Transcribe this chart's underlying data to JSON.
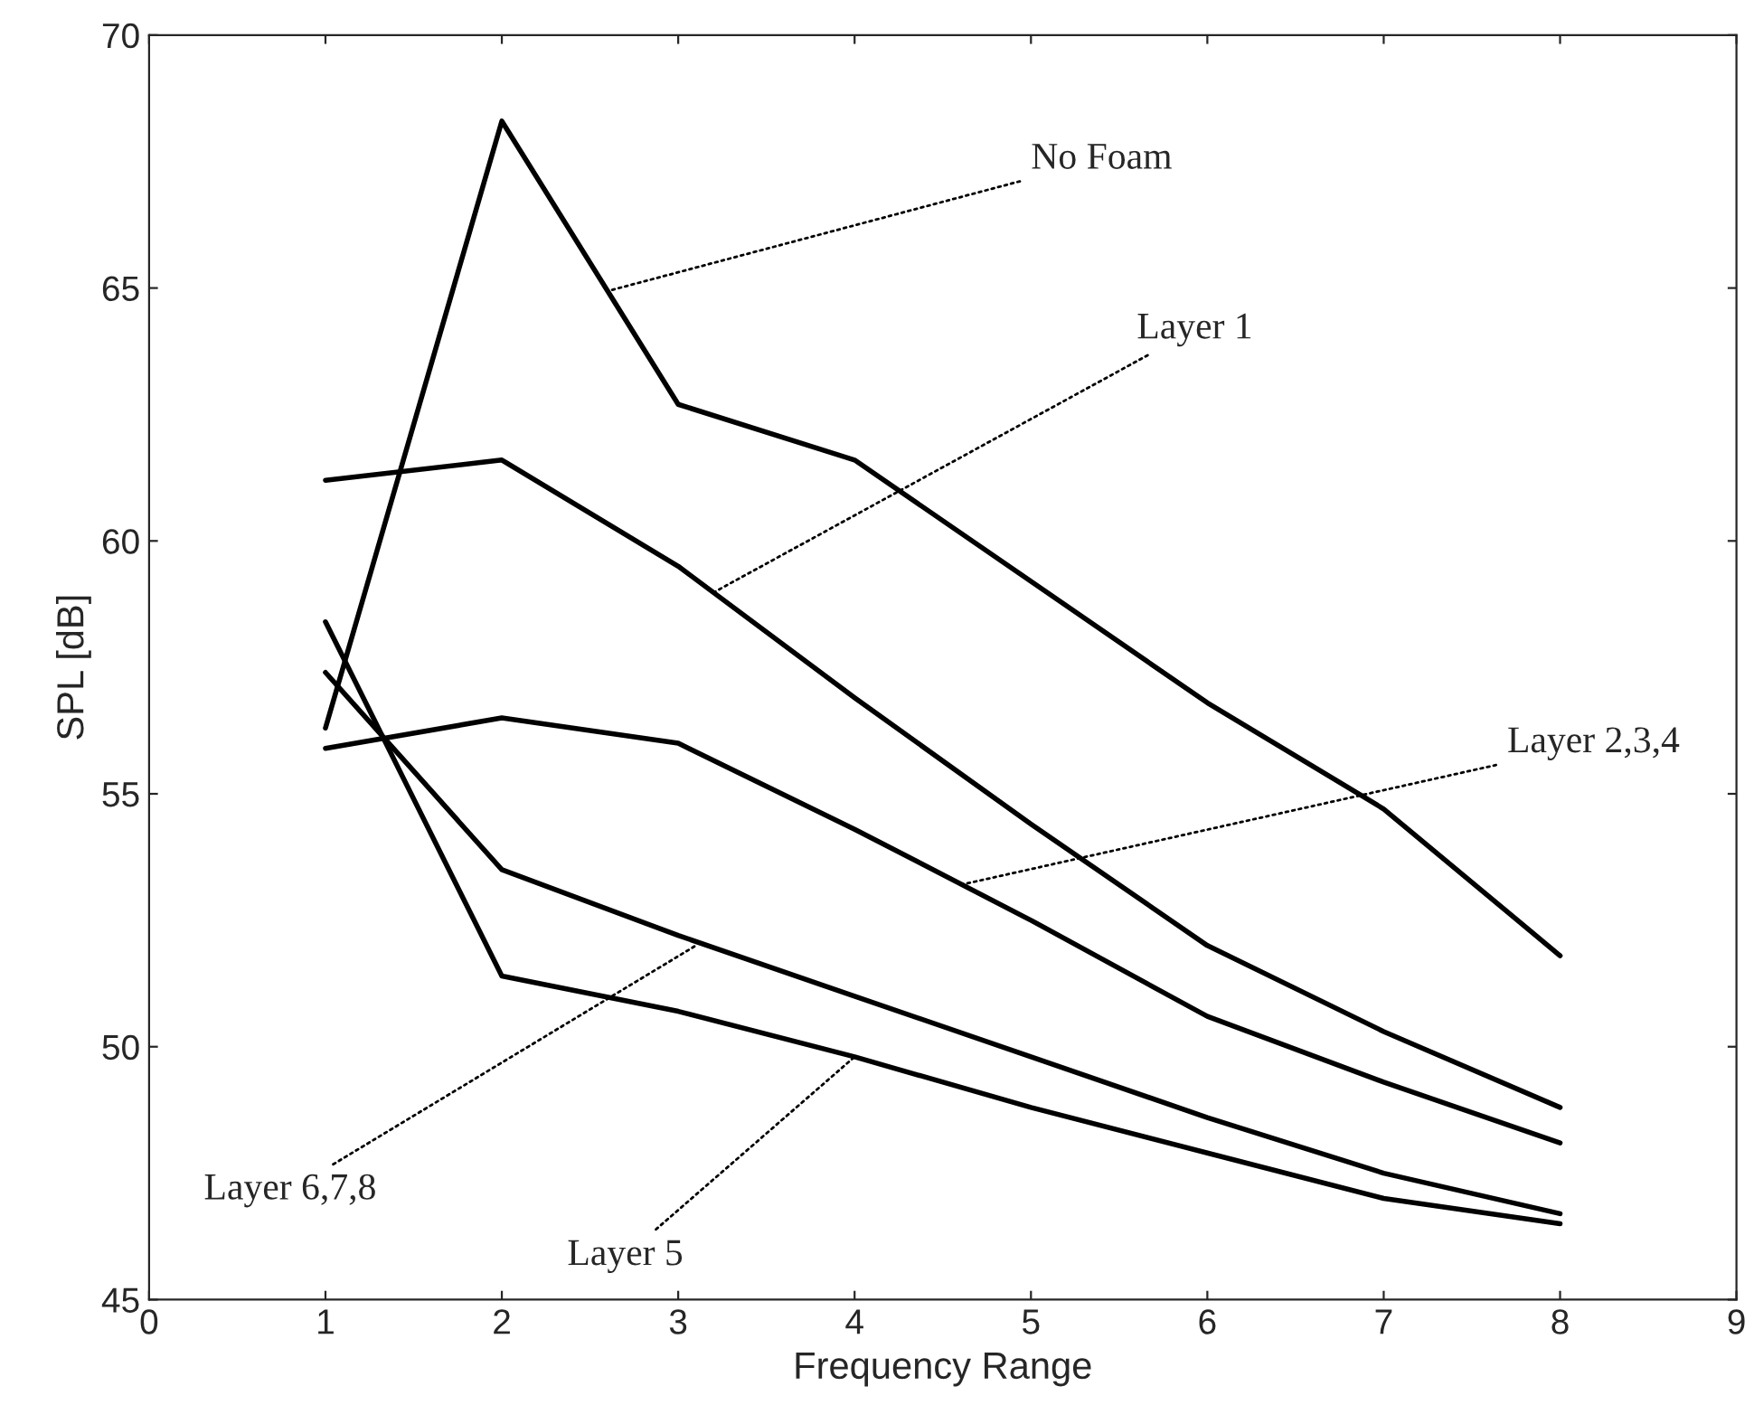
{
  "chart_data": {
    "type": "line",
    "xlabel": "Frequency Range",
    "ylabel": "SPL [dB]",
    "x": [
      1,
      2,
      3,
      4,
      5,
      6,
      7,
      8
    ],
    "series": [
      {
        "color": "#000000",
        "values": [
          56.3,
          68.3,
          62.7,
          61.6,
          59.2,
          56.8,
          54.7,
          51.8
        ]
      },
      {
        "color": "#000000",
        "values": [
          61.2,
          61.6,
          59.5,
          56.9,
          54.4,
          52.0,
          50.3,
          48.8
        ]
      },
      {
        "color": "#000000",
        "values": [
          55.9,
          56.5,
          56.0,
          54.3,
          52.5,
          50.6,
          49.3,
          48.1
        ]
      },
      {
        "color": "#000000",
        "values": [
          57.4,
          53.5,
          52.2,
          51.0,
          49.8,
          48.6,
          47.5,
          46.7
        ]
      },
      {
        "color": "#000000",
        "values": [
          58.4,
          51.4,
          50.7,
          49.8,
          48.8,
          47.9,
          47.0,
          46.5
        ]
      }
    ],
    "annotations": [
      {
        "text": "No Foam",
        "x": 2.6,
        "y": 64.94
      },
      {
        "text": "Layer 1",
        "x": 3.2,
        "y": 58.98
      },
      {
        "text": "Layer 2,3,4",
        "x": 4.6,
        "y": 53.2
      },
      {
        "text": "Layer 6,7,8",
        "x": 3.1,
        "y": 52.0
      },
      {
        "text": "Layer 5",
        "x": 4.0,
        "y": 49.8
      }
    ],
    "xlim": [
      0,
      9
    ],
    "xticks": [
      0,
      1,
      2,
      3,
      4,
      5,
      6,
      7,
      8,
      9
    ],
    "ylim": [
      45,
      70
    ],
    "yticks": [
      45,
      50,
      55,
      60,
      65,
      70
    ],
    "grid": false,
    "legend": false,
    "marker": "none",
    "line_style": "solid"
  }
}
